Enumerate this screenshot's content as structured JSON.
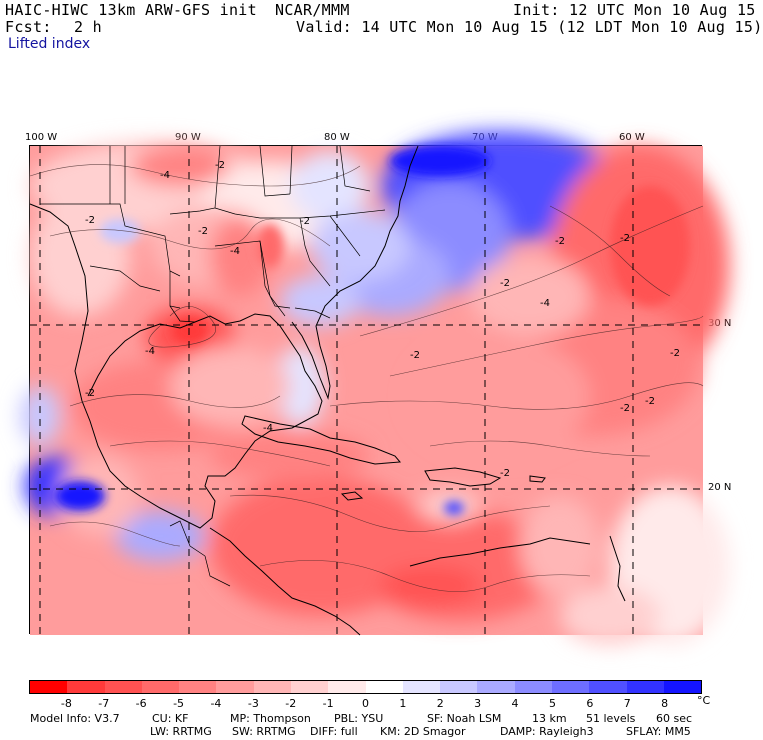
{
  "header": {
    "model": "HAIC-HIWC 13km ARW-GFS init",
    "org": "NCAR/MMM",
    "init": "Init: 12 UTC Mon 10 Aug 15",
    "fcst_label": "Fcst:",
    "fcst_value": "2 h",
    "valid": "Valid: 14 UTC Mon 10 Aug 15 (12 LDT Mon 10 Aug 15)",
    "variable": "Lifted index"
  },
  "map": {
    "lon_labels": [
      "100 W",
      "90 W",
      "80 W",
      "70 W",
      "60 W"
    ],
    "lat_labels": [
      "30 N",
      "20 N"
    ],
    "contour_labels": [
      "-4",
      "-2",
      "-2",
      "-2",
      "-2",
      "-4",
      "-2",
      "-4",
      "-2",
      "-2",
      "-2",
      "-2",
      "-2",
      "-4",
      "-2",
      "-2",
      "-4",
      "-2"
    ]
  },
  "colorbar": {
    "ticks": [
      "-8",
      "-7",
      "-6",
      "-5",
      "-4",
      "-3",
      "-2",
      "-1",
      "0",
      "1",
      "2",
      "3",
      "4",
      "5",
      "6",
      "7",
      "8"
    ],
    "unit": "°C",
    "colors": [
      "#ff0000",
      "#ff3a3a",
      "#ff5252",
      "#ff6a6a",
      "#ff8282",
      "#ff9c9c",
      "#ffb6b6",
      "#ffd0d0",
      "#ffeaea",
      "#ffffff",
      "#e4e4ff",
      "#c8c8ff",
      "#aaaaff",
      "#8c8cff",
      "#6e6eff",
      "#5050ff",
      "#3232ff",
      "#1414ff"
    ]
  },
  "model_info": {
    "line1": {
      "model": "Model Info: V3.7",
      "cu": "CU: KF",
      "mp": "MP: Thompson",
      "pbl": "PBL: YSU",
      "sf": "SF: Noah LSM",
      "res": "13 km",
      "levels": "51 levels",
      "dt": "60 sec"
    },
    "line2": {
      "lw": "LW: RRTMG",
      "sw": "SW: RRTMG",
      "diff": "DIFF: full",
      "km": "KM: 2D Smagor",
      "damp": "DAMP: Rayleigh3",
      "sflay": "SFLAY: MM5"
    }
  }
}
